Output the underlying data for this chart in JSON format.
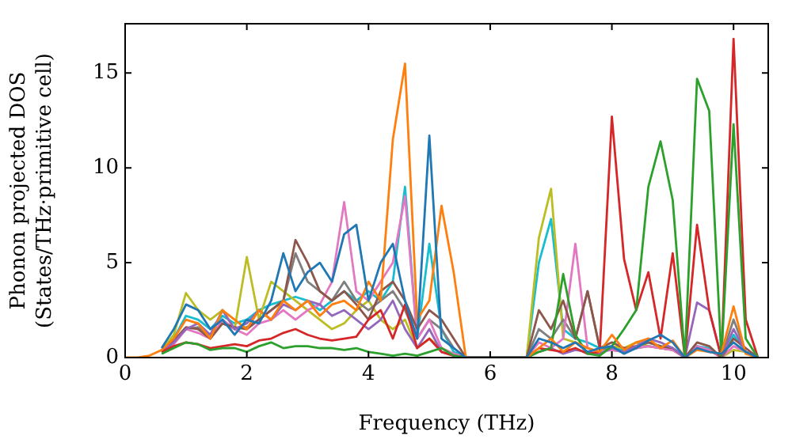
{
  "chart_data": {
    "type": "line",
    "xlabel": "Frequency (THz)",
    "ylabel": "Phonon projected DOS\n(States/THz·primitive cell)",
    "xlim": [
      0,
      10.57
    ],
    "ylim": [
      0,
      17.6
    ],
    "xticks": [
      0,
      2,
      4,
      6,
      8,
      10
    ],
    "yticks": [
      0,
      5,
      10,
      15
    ],
    "x": [
      0,
      0.2,
      0.4,
      0.6,
      0.8,
      1.0,
      1.2,
      1.4,
      1.6,
      1.8,
      2.0,
      2.2,
      2.4,
      2.6,
      2.8,
      3.0,
      3.2,
      3.4,
      3.6,
      3.8,
      4.0,
      4.2,
      4.4,
      4.6,
      4.8,
      5.0,
      5.2,
      5.4,
      5.6,
      6.6,
      6.8,
      7.0,
      7.2,
      7.4,
      7.6,
      7.8,
      8.0,
      8.2,
      8.4,
      8.6,
      8.8,
      9.0,
      9.2,
      9.4,
      9.6,
      9.8,
      10.0,
      10.2,
      10.4
    ],
    "series": [
      {
        "color": "#1f77b4",
        "values": [
          null,
          null,
          null,
          0.5,
          1.5,
          2.8,
          2.5,
          1.5,
          2.0,
          1.2,
          2.0,
          1.8,
          3.0,
          5.5,
          3.5,
          4.5,
          5.0,
          4.0,
          6.5,
          7.0,
          3.0,
          5.0,
          6.0,
          3.0,
          1.0,
          11.7,
          1.0,
          0.5,
          0,
          0,
          1.0,
          0.8,
          0.5,
          0.8,
          0.3,
          0.5,
          0.6,
          0.2,
          0.5,
          0.9,
          1.2,
          0.8,
          0,
          0.5,
          0.3,
          0.2,
          0.8,
          0.3,
          0
        ]
      },
      {
        "color": "#ff7f0e",
        "values": [
          0,
          0,
          0.1,
          0.4,
          1.0,
          2.0,
          1.8,
          1.0,
          2.5,
          2.0,
          1.5,
          2.5,
          2.0,
          3.0,
          2.5,
          3.0,
          2.2,
          2.8,
          3.0,
          2.5,
          4.0,
          3.0,
          11.5,
          15.5,
          2.0,
          3.0,
          8.0,
          4.5,
          0,
          0,
          0.5,
          1.0,
          0.3,
          0.8,
          0.5,
          0.3,
          1.2,
          0.4,
          0.8,
          1.0,
          0.5,
          0.9,
          0,
          0.4,
          0.3,
          0.2,
          2.7,
          0.2,
          0
        ]
      },
      {
        "color": "#2ca02c",
        "values": [
          null,
          null,
          null,
          0.2,
          0.5,
          0.8,
          0.7,
          0.4,
          0.5,
          0.5,
          0.3,
          0.6,
          0.8,
          0.5,
          0.6,
          0.6,
          0.5,
          0.5,
          0.4,
          0.5,
          0.3,
          0.2,
          0.1,
          0.2,
          0.1,
          0.3,
          0.5,
          0.1,
          0,
          0,
          0.3,
          0.5,
          4.4,
          1.2,
          0.2,
          0.1,
          0.6,
          1.5,
          2.5,
          9.0,
          11.4,
          8.3,
          0,
          14.7,
          13.0,
          0,
          12.3,
          1.0,
          0
        ]
      },
      {
        "color": "#d62728",
        "values": [
          null,
          null,
          null,
          0.3,
          0.6,
          0.8,
          0.7,
          0.5,
          0.6,
          0.7,
          0.6,
          0.9,
          1.0,
          1.3,
          1.5,
          1.2,
          1.0,
          0.9,
          1.0,
          1.1,
          2.0,
          2.5,
          1.0,
          2.8,
          0.5,
          1.0,
          0.3,
          0.1,
          0,
          0,
          0.5,
          0.4,
          0.3,
          0.5,
          0.2,
          0.3,
          12.7,
          5.2,
          2.5,
          4.5,
          1.0,
          5.5,
          0,
          7.0,
          2.5,
          0,
          16.8,
          2.0,
          0
        ]
      },
      {
        "color": "#9467bd",
        "values": [
          null,
          null,
          null,
          0.3,
          0.8,
          1.5,
          1.8,
          1.2,
          2.5,
          1.5,
          1.8,
          2.5,
          2.0,
          2.8,
          2.5,
          3.0,
          2.8,
          2.2,
          2.5,
          2.0,
          1.5,
          2.0,
          3.0,
          1.5,
          0.5,
          1.5,
          0.3,
          0.1,
          0,
          0,
          0.3,
          0.5,
          0.2,
          0.4,
          0.3,
          0.2,
          0.5,
          0.3,
          0.6,
          1.0,
          0.8,
          0.5,
          0,
          2.9,
          2.5,
          0,
          1.5,
          0.3,
          0
        ]
      },
      {
        "color": "#8c564b",
        "values": [
          null,
          null,
          null,
          0.3,
          0.9,
          1.6,
          1.5,
          1.0,
          1.8,
          1.6,
          1.5,
          2.0,
          2.5,
          3.0,
          6.2,
          5.0,
          3.5,
          3.0,
          3.5,
          2.8,
          2.0,
          3.5,
          4.0,
          3.0,
          1.5,
          2.5,
          2.0,
          1.0,
          0,
          0,
          2.5,
          1.5,
          3.0,
          1.0,
          3.5,
          0.5,
          0.8,
          0.5,
          0.6,
          0.8,
          0.6,
          0.5,
          0,
          0.8,
          0.6,
          0,
          1.0,
          0.5,
          0
        ]
      },
      {
        "color": "#e377c2",
        "values": [
          null,
          null,
          null,
          0.3,
          0.7,
          1.5,
          1.3,
          1.0,
          2.0,
          1.5,
          1.2,
          1.8,
          2.0,
          2.5,
          2.0,
          2.5,
          2.8,
          4.0,
          8.2,
          3.5,
          3.0,
          4.0,
          5.0,
          8.5,
          1.0,
          2.0,
          0.5,
          0.2,
          0,
          0,
          0.8,
          0.5,
          1.0,
          6.0,
          0.5,
          0.3,
          0.4,
          0.3,
          0.5,
          0.6,
          0.5,
          0.4,
          0,
          0.6,
          0.4,
          0,
          0.6,
          0.3,
          0
        ]
      },
      {
        "color": "#7f7f7f",
        "values": [
          null,
          null,
          null,
          0.3,
          0.8,
          1.5,
          1.6,
          1.2,
          1.8,
          1.5,
          1.6,
          2.0,
          2.5,
          3.0,
          5.5,
          4.0,
          3.5,
          3.0,
          4.0,
          3.0,
          2.5,
          3.0,
          3.5,
          2.5,
          1.0,
          2.0,
          1.5,
          0.5,
          0,
          0,
          1.5,
          1.0,
          2.0,
          1.0,
          3.5,
          0.5,
          0.4,
          0.3,
          0.5,
          0.6,
          0.5,
          0.4,
          0,
          0.5,
          0.4,
          0,
          2.0,
          0.3,
          0
        ]
      },
      {
        "color": "#bcbd22",
        "values": [
          null,
          null,
          null,
          0.4,
          1.2,
          3.4,
          2.5,
          2.0,
          2.5,
          1.5,
          5.3,
          2.0,
          4.0,
          3.5,
          3.0,
          2.5,
          2.0,
          1.5,
          1.8,
          2.5,
          3.0,
          2.0,
          1.5,
          2.0,
          0.5,
          1.0,
          0.5,
          0.2,
          0,
          0,
          6.3,
          8.9,
          1.0,
          0.8,
          0.5,
          0.3,
          0.6,
          0.5,
          0.8,
          0.6,
          0.5,
          0.4,
          0,
          0.5,
          0.4,
          0,
          0.4,
          0.3,
          0
        ]
      },
      {
        "color": "#17becf",
        "values": [
          null,
          null,
          null,
          0.4,
          1.0,
          2.2,
          2.0,
          1.5,
          2.2,
          1.8,
          2.0,
          2.5,
          2.8,
          3.0,
          3.2,
          3.0,
          2.5,
          3.0,
          3.5,
          3.0,
          3.5,
          3.0,
          4.0,
          9.0,
          1.0,
          6.0,
          1.5,
          0.3,
          0,
          0,
          5.0,
          7.3,
          1.5,
          1.0,
          0.8,
          0.5,
          0.5,
          0.4,
          0.6,
          0.8,
          0.6,
          0.5,
          0,
          0.6,
          0.5,
          0,
          1.2,
          0.3,
          0
        ]
      }
    ]
  }
}
